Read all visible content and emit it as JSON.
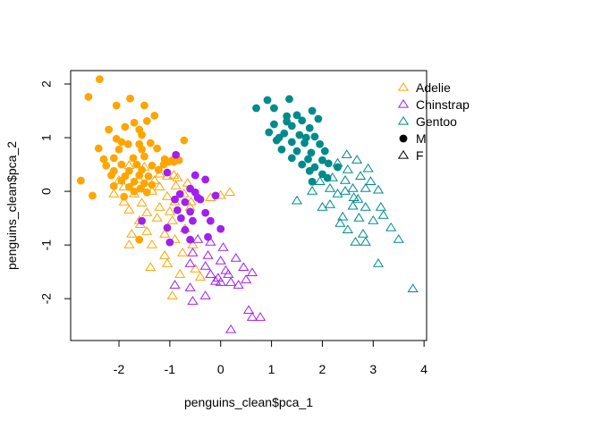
{
  "chart_data": {
    "type": "scatter",
    "title": "",
    "xlabel": "penguins_clean$pca_1",
    "ylabel": "penguins_clean$pca_2",
    "xlim": [
      -2.95,
      4.05
    ],
    "ylim": [
      -2.78,
      2.25
    ],
    "x_ticks": [
      -2,
      -1,
      0,
      1,
      2,
      3,
      4
    ],
    "y_ticks": [
      -2,
      -1,
      0,
      1,
      2
    ],
    "x_tick_labels": [
      "-2",
      "-1",
      "0",
      "1",
      "2",
      "3",
      "4"
    ],
    "y_tick_labels": [
      "-2",
      "-1",
      "0",
      "1",
      "2"
    ],
    "grid": false,
    "legend_position": "top-right",
    "legend": [
      {
        "label": "Adelie",
        "color": "#FFA500",
        "marker": "triangle-open"
      },
      {
        "label": "Chinstrap",
        "color": "#A020F0",
        "marker": "triangle-open"
      },
      {
        "label": "Gentoo",
        "color": "#008B8B",
        "marker": "triangle-open"
      },
      {
        "label": "M",
        "color": "#000000",
        "marker": "circle-filled"
      },
      {
        "label": "F",
        "color": "#000000",
        "marker": "triangle-open"
      }
    ],
    "series": [
      {
        "name": "Adelie",
        "sex": "M",
        "color": "#FFA500",
        "marker": "circle-filled",
        "points": [
          [
            -2.38,
            2.09
          ],
          [
            -2.6,
            1.76
          ],
          [
            -2.05,
            1.6
          ],
          [
            -1.78,
            1.73
          ],
          [
            -1.5,
            1.6
          ],
          [
            -1.3,
            1.41
          ],
          [
            -1.45,
            1.31
          ],
          [
            -1.7,
            1.28
          ],
          [
            -2.2,
            1.15
          ],
          [
            -1.88,
            1.2
          ],
          [
            -1.6,
            1.15
          ],
          [
            -1.55,
            1.05
          ],
          [
            -2.05,
            0.98
          ],
          [
            -1.95,
            0.92
          ],
          [
            -1.82,
            0.88
          ],
          [
            -1.6,
            0.88
          ],
          [
            -1.38,
            0.9
          ],
          [
            -0.72,
            0.95
          ],
          [
            -2.4,
            0.8
          ],
          [
            -2.0,
            0.78
          ],
          [
            -1.55,
            0.78
          ],
          [
            -1.25,
            0.8
          ],
          [
            -2.3,
            0.6
          ],
          [
            -2.1,
            0.62
          ],
          [
            -1.72,
            0.62
          ],
          [
            -1.5,
            0.65
          ],
          [
            -1.1,
            0.6
          ],
          [
            -2.25,
            0.48
          ],
          [
            -1.95,
            0.5
          ],
          [
            -1.65,
            0.5
          ],
          [
            -1.35,
            0.48
          ],
          [
            -0.95,
            0.58
          ],
          [
            -2.1,
            0.38
          ],
          [
            -1.8,
            0.38
          ],
          [
            -1.55,
            0.4
          ],
          [
            -1.22,
            0.4
          ],
          [
            -0.92,
            0.55
          ],
          [
            -1.88,
            0.28
          ],
          [
            -1.6,
            0.3
          ],
          [
            -1.42,
            0.28
          ],
          [
            -1.02,
            0.55
          ],
          [
            -1.95,
            0.2
          ],
          [
            -1.7,
            0.18
          ],
          [
            -1.5,
            0.15
          ],
          [
            -2.1,
            0.1
          ],
          [
            -1.8,
            0.08
          ],
          [
            -1.58,
            0.05
          ],
          [
            -1.35,
            0.12
          ],
          [
            -2.75,
            0.2
          ],
          [
            -2.15,
            0.3
          ],
          [
            -1.7,
            0.0
          ],
          [
            -1.45,
            -0.02
          ],
          [
            -1.9,
            -0.1
          ],
          [
            -2.52,
            -0.08
          ],
          [
            -1.12,
            0.5
          ],
          [
            -0.82,
            0.58
          ],
          [
            -1.6,
            -0.9
          ]
        ]
      },
      {
        "name": "Adelie",
        "sex": "F",
        "color": "#FFA500",
        "marker": "triangle-open",
        "points": [
          [
            -1.8,
            0.48
          ],
          [
            -1.5,
            0.45
          ],
          [
            -1.2,
            0.32
          ],
          [
            -0.92,
            0.3
          ],
          [
            -2.0,
            0.2
          ],
          [
            -1.6,
            0.22
          ],
          [
            -1.3,
            0.2
          ],
          [
            -1.05,
            0.28
          ],
          [
            -0.85,
            0.25
          ],
          [
            -1.9,
            0.08
          ],
          [
            -1.55,
            0.05
          ],
          [
            -1.2,
            0.08
          ],
          [
            -0.88,
            0.1
          ],
          [
            -0.65,
            0.15
          ],
          [
            -2.1,
            -0.05
          ],
          [
            -1.7,
            -0.05
          ],
          [
            -1.35,
            0.0
          ],
          [
            -1.05,
            -0.1
          ],
          [
            -0.72,
            -0.05
          ],
          [
            -1.9,
            -0.2
          ],
          [
            -1.55,
            -0.22
          ],
          [
            -1.2,
            -0.3
          ],
          [
            -0.9,
            -0.2
          ],
          [
            -1.8,
            -0.35
          ],
          [
            -1.45,
            -0.4
          ],
          [
            -1.0,
            -0.38
          ],
          [
            -0.6,
            -0.3
          ],
          [
            -1.6,
            -0.55
          ],
          [
            -1.25,
            -0.5
          ],
          [
            -0.95,
            -0.55
          ],
          [
            -1.75,
            -0.8
          ],
          [
            -1.45,
            -0.75
          ],
          [
            -1.1,
            -0.8
          ],
          [
            -0.7,
            -0.7
          ],
          [
            -1.8,
            -1.0
          ],
          [
            -1.35,
            -1.0
          ],
          [
            -0.9,
            -0.9
          ],
          [
            -0.55,
            -1.0
          ],
          [
            -1.1,
            -1.2
          ],
          [
            -0.75,
            -1.15
          ],
          [
            -1.05,
            -1.35
          ],
          [
            -1.38,
            -1.42
          ],
          [
            -0.5,
            -1.45
          ],
          [
            -0.8,
            -1.55
          ],
          [
            -0.4,
            -1.6
          ],
          [
            -0.95,
            -1.95
          ],
          [
            0.0,
            -0.08
          ],
          [
            0.18,
            -0.02
          ],
          [
            -0.2,
            -0.12
          ],
          [
            -1.58,
            -0.62
          ],
          [
            -0.58,
            -0.2
          ]
        ]
      },
      {
        "name": "Chinstrap",
        "sex": "M",
        "color": "#A020F0",
        "marker": "circle-filled",
        "points": [
          [
            -0.88,
            0.68
          ],
          [
            -1.05,
            0.35
          ],
          [
            -0.5,
            0.3
          ],
          [
            -0.3,
            0.22
          ],
          [
            -0.6,
            0.05
          ],
          [
            -0.8,
            -0.05
          ],
          [
            -0.5,
            -0.02
          ],
          [
            -0.1,
            -0.08
          ],
          [
            -0.9,
            -0.15
          ],
          [
            -0.7,
            -0.2
          ],
          [
            -0.4,
            -0.15
          ],
          [
            -0.85,
            -0.35
          ],
          [
            -0.6,
            -0.38
          ],
          [
            -0.3,
            -0.4
          ],
          [
            -0.78,
            -0.5
          ],
          [
            -0.55,
            -0.55
          ],
          [
            -0.2,
            -0.55
          ],
          [
            -0.7,
            -0.72
          ],
          [
            -1.05,
            -0.68
          ],
          [
            -1.0,
            -0.95
          ],
          [
            -0.6,
            -0.9
          ],
          [
            -0.25,
            -0.85
          ],
          [
            -1.55,
            -0.55
          ],
          [
            0.0,
            -0.7
          ],
          [
            -0.45,
            -0.12
          ]
        ]
      },
      {
        "name": "Chinstrap",
        "sex": "F",
        "color": "#A020F0",
        "marker": "triangle-open",
        "points": [
          [
            -0.45,
            -0.9
          ],
          [
            -0.2,
            -0.95
          ],
          [
            -0.55,
            -1.15
          ],
          [
            -0.25,
            -1.2
          ],
          [
            0.05,
            -1.05
          ],
          [
            -0.6,
            -1.35
          ],
          [
            -0.3,
            -1.4
          ],
          [
            0.0,
            -1.3
          ],
          [
            0.3,
            -1.25
          ],
          [
            -0.2,
            -1.55
          ],
          [
            0.15,
            -1.55
          ],
          [
            0.45,
            -1.42
          ],
          [
            -0.1,
            -1.68
          ],
          [
            0.2,
            -1.7
          ],
          [
            0.5,
            -1.65
          ],
          [
            0.62,
            -1.52
          ],
          [
            -0.9,
            -1.75
          ],
          [
            -0.6,
            -1.8
          ],
          [
            -0.3,
            -1.95
          ],
          [
            0.0,
            -1.7
          ],
          [
            -0.55,
            -2.05
          ],
          [
            0.55,
            -2.22
          ],
          [
            0.62,
            -2.35
          ],
          [
            0.78,
            -2.35
          ],
          [
            0.2,
            -2.58
          ],
          [
            0.1,
            -1.48
          ],
          [
            0.35,
            -1.75
          ],
          [
            -0.05,
            -1.62
          ]
        ]
      },
      {
        "name": "Gentoo",
        "sex": "M",
        "color": "#008B8B",
        "marker": "circle-filled",
        "points": [
          [
            0.7,
            1.55
          ],
          [
            0.92,
            1.7
          ],
          [
            1.35,
            1.72
          ],
          [
            1.5,
            1.42
          ],
          [
            1.8,
            1.5
          ],
          [
            1.05,
            1.55
          ],
          [
            1.3,
            1.4
          ],
          [
            1.6,
            1.32
          ],
          [
            1.92,
            1.35
          ],
          [
            1.05,
            1.25
          ],
          [
            1.4,
            1.22
          ],
          [
            1.75,
            1.18
          ],
          [
            0.95,
            1.1
          ],
          [
            1.25,
            1.08
          ],
          [
            1.55,
            1.05
          ],
          [
            1.85,
            1.02
          ],
          [
            1.1,
            0.95
          ],
          [
            1.4,
            0.92
          ],
          [
            1.65,
            0.9
          ],
          [
            1.95,
            0.88
          ],
          [
            1.2,
            0.78
          ],
          [
            1.5,
            0.75
          ],
          [
            1.78,
            0.72
          ],
          [
            2.05,
            0.75
          ],
          [
            1.4,
            0.62
          ],
          [
            1.72,
            0.6
          ],
          [
            2.0,
            0.58
          ],
          [
            1.6,
            0.5
          ],
          [
            1.85,
            0.45
          ],
          [
            2.12,
            0.52
          ],
          [
            1.75,
            0.38
          ],
          [
            2.0,
            0.32
          ],
          [
            1.8,
            0.18
          ],
          [
            2.1,
            0.25
          ],
          [
            2.3,
            0.45
          ],
          [
            1.3,
            1.3
          ],
          [
            1.15,
            1.0
          ],
          [
            1.68,
            1.0
          ]
        ]
      },
      {
        "name": "Gentoo",
        "sex": "F",
        "color": "#008B8B",
        "marker": "triangle-open",
        "points": [
          [
            2.48,
            0.68
          ],
          [
            2.68,
            0.58
          ],
          [
            2.3,
            0.52
          ],
          [
            2.9,
            0.42
          ],
          [
            2.5,
            0.4
          ],
          [
            2.75,
            0.28
          ],
          [
            2.2,
            0.25
          ],
          [
            1.95,
            0.18
          ],
          [
            2.45,
            0.2
          ],
          [
            2.95,
            0.18
          ],
          [
            2.15,
            0.05
          ],
          [
            2.6,
            0.05
          ],
          [
            2.85,
            0.05
          ],
          [
            1.8,
            0.0
          ],
          [
            2.3,
            -0.05
          ],
          [
            2.62,
            -0.12
          ],
          [
            3.1,
            0.02
          ],
          [
            1.5,
            -0.18
          ],
          [
            2.15,
            -0.25
          ],
          [
            2.6,
            -0.28
          ],
          [
            2.85,
            -0.3
          ],
          [
            3.15,
            -0.3
          ],
          [
            2.4,
            -0.48
          ],
          [
            2.72,
            -0.5
          ],
          [
            3.0,
            -0.55
          ],
          [
            3.2,
            -0.45
          ],
          [
            2.5,
            -0.72
          ],
          [
            2.8,
            -0.8
          ],
          [
            3.35,
            -0.68
          ],
          [
            2.65,
            -0.95
          ],
          [
            2.85,
            -0.95
          ],
          [
            3.5,
            -0.9
          ],
          [
            3.1,
            -1.35
          ],
          [
            3.78,
            -1.82
          ],
          [
            2.35,
            -0.6
          ],
          [
            2.45,
            0.0
          ],
          [
            2.0,
            -0.3
          ],
          [
            2.7,
            -0.15
          ]
        ]
      }
    ]
  }
}
